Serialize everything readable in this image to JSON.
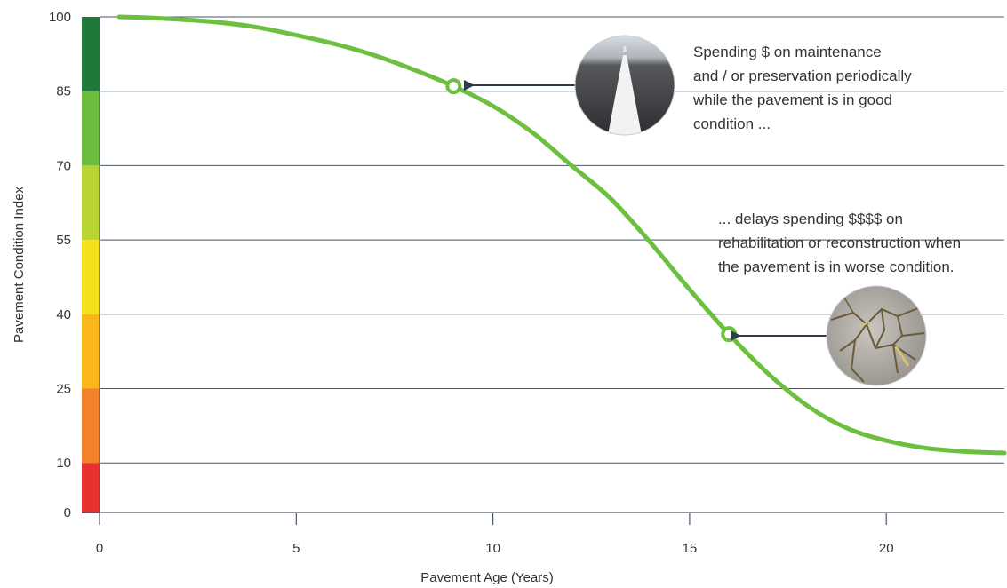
{
  "chart_data": {
    "type": "line",
    "xlabel": "Pavement Age (Years)",
    "ylabel": "Pavement Condition Index",
    "xlim": [
      0,
      23
    ],
    "ylim": [
      0,
      100
    ],
    "x_ticks": [
      0,
      5,
      10,
      15,
      20
    ],
    "y_ticks": [
      0,
      10,
      25,
      40,
      55,
      70,
      85,
      100
    ],
    "grid": "horizontal lines at y ticks",
    "condition_bands": [
      {
        "from": 85,
        "to": 100,
        "color": "#1e7a3a"
      },
      {
        "from": 70,
        "to": 85,
        "color": "#6cbd3f"
      },
      {
        "from": 55,
        "to": 70,
        "color": "#b8d433"
      },
      {
        "from": 40,
        "to": 55,
        "color": "#f4e11d"
      },
      {
        "from": 25,
        "to": 40,
        "color": "#f9b71a"
      },
      {
        "from": 10,
        "to": 25,
        "color": "#f1822b"
      },
      {
        "from": 0,
        "to": 10,
        "color": "#e7312f"
      }
    ],
    "series": [
      {
        "color": "#6dbf3f",
        "x": [
          0.5,
          1,
          2,
          3,
          4,
          5,
          6,
          7,
          8,
          9,
          10,
          11,
          12,
          13,
          14,
          15,
          16,
          17,
          18,
          19,
          20,
          21,
          22,
          23
        ],
        "y": [
          100,
          99.9,
          99.5,
          98.9,
          97.9,
          96.3,
          94.5,
          92.2,
          89.3,
          86,
          82,
          76.7,
          70,
          63.3,
          54.5,
          45,
          36,
          28,
          21.5,
          17,
          14.5,
          13,
          12.3,
          12
        ]
      }
    ],
    "markers": [
      {
        "x": 9,
        "y": 86,
        "photo": "smooth-road-photo"
      },
      {
        "x": 16,
        "y": 36,
        "photo": "cracked-pavement-photo"
      }
    ],
    "annotations": [
      {
        "lines": [
          "Spending $ on maintenance",
          "and / or preservation periodically",
          "while the pavement is in good",
          "condition ..."
        ]
      },
      {
        "lines": [
          "... delays spending $$$$ on",
          "rehabilitation or reconstruction when",
          "the pavement is in worse condition."
        ]
      }
    ]
  }
}
